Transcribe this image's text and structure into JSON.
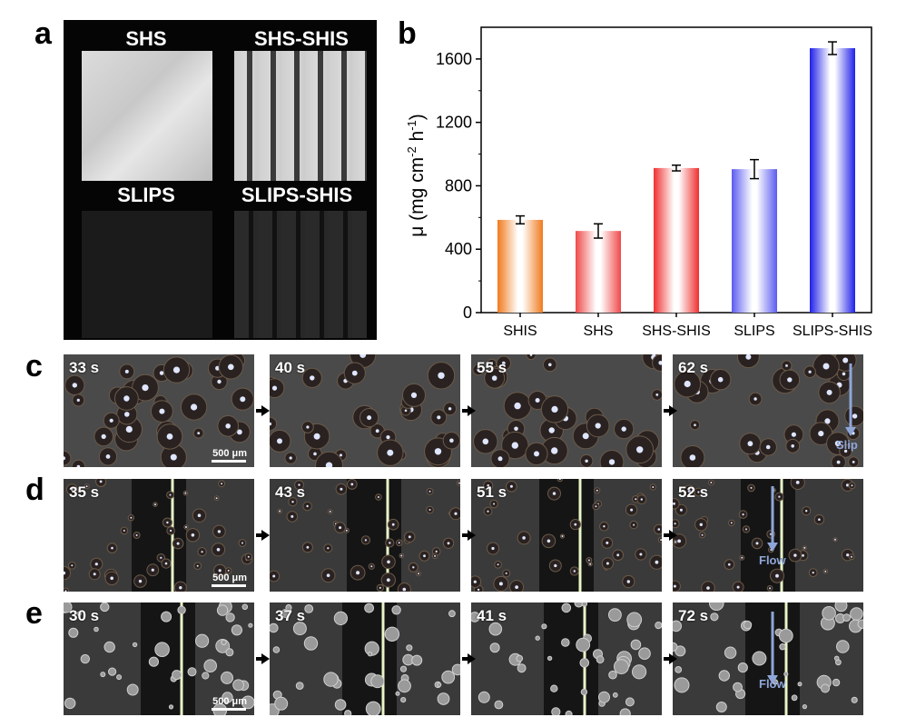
{
  "panel_labels": {
    "a": "a",
    "b": "b",
    "c": "c",
    "d": "d",
    "e": "e"
  },
  "panel_a": {
    "samples": [
      "SHS",
      "SHS-SHIS",
      "SLIPS",
      "SLIPS-SHIS"
    ]
  },
  "chart_data": {
    "type": "bar",
    "categories": [
      "SHIS",
      "SHS",
      "SHS-SHIS",
      "SLIPS",
      "SLIPS-SHIS"
    ],
    "values": [
      585,
      515,
      912,
      905,
      1668
    ],
    "errors": [
      25,
      45,
      18,
      60,
      40
    ],
    "ylabel_parts": {
      "pre": "μ (mg cm",
      "sup1": "-2",
      "mid": " h",
      "sup2": "-1",
      "post": ")"
    },
    "ylim": [
      0,
      1800
    ],
    "yticks": [
      0,
      400,
      800,
      1200,
      1600
    ],
    "colors": [
      "#f07a1e",
      "#ef4a4a",
      "#ef3030",
      "#5b5bf0",
      "#2020e8"
    ]
  },
  "micrographs": {
    "c": {
      "times": [
        "33 s",
        "40 s",
        "55 s",
        "62 s"
      ],
      "direction": "Slip"
    },
    "d": {
      "times": [
        "35 s",
        "43 s",
        "51 s",
        "52 s"
      ],
      "direction": "Flow"
    },
    "e": {
      "times": [
        "30 s",
        "37 s",
        "41 s",
        "72 s"
      ],
      "direction": "Flow"
    },
    "scale_bar": "500 μm"
  }
}
